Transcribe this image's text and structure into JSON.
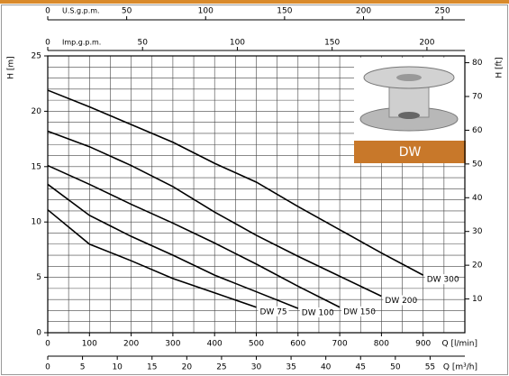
{
  "chart_data": {
    "type": "line",
    "ylabel": "H [m]",
    "y2label": "H [ft]",
    "xlabel": "Q [l/min]",
    "xlim": [
      0,
      1000
    ],
    "xticks": [
      0,
      100,
      200,
      300,
      400,
      500,
      600,
      700,
      800,
      900
    ],
    "ylim": [
      0,
      25
    ],
    "yticks": [
      0,
      5,
      10,
      15,
      20,
      25
    ],
    "y2lim": [
      0,
      82.02
    ],
    "y2ticks": [
      10,
      20,
      30,
      40,
      50,
      60,
      70,
      80
    ],
    "secondary_x_axes": [
      {
        "label": "Q [m³/h]",
        "position": "bottom",
        "lim": [
          0,
          60
        ],
        "ticks": [
          0,
          5,
          10,
          15,
          20,
          25,
          30,
          35,
          40,
          45,
          50,
          55
        ]
      },
      {
        "label": "U.S.g.p.m.",
        "position": "top",
        "lim": [
          0,
          264.2
        ],
        "ticks": [
          0,
          50,
          100,
          150,
          200,
          250
        ]
      },
      {
        "label": "Imp.g.p.m.",
        "position": "top",
        "lim": [
          0,
          220
        ],
        "ticks": [
          0,
          50,
          100,
          150,
          200
        ]
      }
    ],
    "grid": {
      "x_step": 50,
      "y_step": 1
    },
    "badge": "DW",
    "series": [
      {
        "name": "DW 300",
        "color": "#000000",
        "x": [
          0,
          100,
          200,
          300,
          400,
          500,
          600,
          700,
          800,
          900
        ],
        "values": [
          21.9,
          20.4,
          18.8,
          17.2,
          15.3,
          13.6,
          11.4,
          9.3,
          7.2,
          5.2
        ]
      },
      {
        "name": "DW 200",
        "color": "#000000",
        "x": [
          0,
          100,
          200,
          300,
          400,
          500,
          600,
          700,
          800
        ],
        "values": [
          18.2,
          16.8,
          15.1,
          13.2,
          10.9,
          8.8,
          6.9,
          5.1,
          3.3
        ]
      },
      {
        "name": "DW 150",
        "color": "#000000",
        "x": [
          0,
          100,
          200,
          300,
          400,
          500,
          600,
          700
        ],
        "values": [
          15.1,
          13.4,
          11.6,
          9.9,
          8.1,
          6.2,
          4.2,
          2.3
        ]
      },
      {
        "name": "DW 100",
        "color": "#000000",
        "x": [
          0,
          100,
          200,
          300,
          400,
          500,
          600
        ],
        "values": [
          13.4,
          10.6,
          8.7,
          7.0,
          5.2,
          3.7,
          2.2
        ]
      },
      {
        "name": "DW 75",
        "color": "#000000",
        "x": [
          0,
          100,
          200,
          300,
          400,
          500
        ],
        "values": [
          11.1,
          8.0,
          6.5,
          4.9,
          3.6,
          2.3
        ]
      }
    ]
  }
}
